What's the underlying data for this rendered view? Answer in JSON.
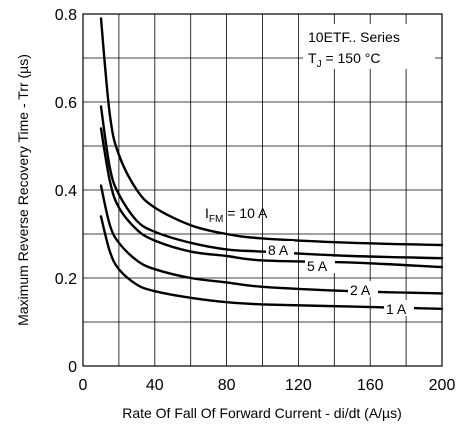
{
  "chart_data": {
    "type": "line",
    "xlabel": "Rate Of Fall Of Forward Current - di/dt (A/µs)",
    "ylabel": "Maximum Reverse Recovery Time - Trr (µs)",
    "xlim": [
      0,
      200
    ],
    "ylim": [
      0,
      0.8
    ],
    "x_ticks": [
      "0",
      "40",
      "80",
      "120",
      "160",
      "200"
    ],
    "y_ticks": [
      "0",
      "0.2",
      "0.4",
      "0.6",
      "0.8"
    ],
    "x_grid": [
      0,
      20,
      40,
      60,
      80,
      100,
      120,
      140,
      160,
      180,
      200
    ],
    "y_grid": [
      0,
      0.1,
      0.2,
      0.3,
      0.4,
      0.5,
      0.6,
      0.7,
      0.8
    ],
    "grid": true,
    "annotation": {
      "series_line": "10ETF.. Series",
      "temp_prefix": "T",
      "temp_sub": "J",
      "temp_suffix": " = 150 °C"
    },
    "series": [
      {
        "name": "I_FM = 10 A",
        "label_prefix": "I",
        "label_sub": "FM",
        "label_suffix": " = 10 A",
        "x": [
          10,
          15,
          20,
          30,
          40,
          60,
          80,
          100,
          150,
          200
        ],
        "values": [
          0.79,
          0.57,
          0.48,
          0.4,
          0.36,
          0.32,
          0.3,
          0.29,
          0.28,
          0.275
        ]
      },
      {
        "name": "8 A",
        "label": "8 A",
        "x": [
          10,
          15,
          20,
          30,
          40,
          60,
          80,
          100,
          150,
          200
        ],
        "values": [
          0.59,
          0.45,
          0.39,
          0.33,
          0.305,
          0.28,
          0.265,
          0.26,
          0.25,
          0.245
        ]
      },
      {
        "name": "5 A",
        "label": "5 A",
        "x": [
          10,
          15,
          20,
          30,
          40,
          60,
          80,
          100,
          150,
          200
        ],
        "values": [
          0.54,
          0.42,
          0.36,
          0.31,
          0.285,
          0.26,
          0.25,
          0.24,
          0.235,
          0.225
        ]
      },
      {
        "name": "2 A",
        "label": "2 A",
        "x": [
          10,
          15,
          20,
          30,
          40,
          60,
          80,
          100,
          150,
          200
        ],
        "values": [
          0.41,
          0.32,
          0.28,
          0.24,
          0.22,
          0.2,
          0.19,
          0.18,
          0.17,
          0.165
        ]
      },
      {
        "name": "1 A",
        "label": "1 A",
        "x": [
          10,
          15,
          20,
          30,
          40,
          60,
          80,
          100,
          150,
          200
        ],
        "values": [
          0.34,
          0.26,
          0.22,
          0.185,
          0.17,
          0.155,
          0.145,
          0.14,
          0.135,
          0.13
        ]
      }
    ]
  }
}
